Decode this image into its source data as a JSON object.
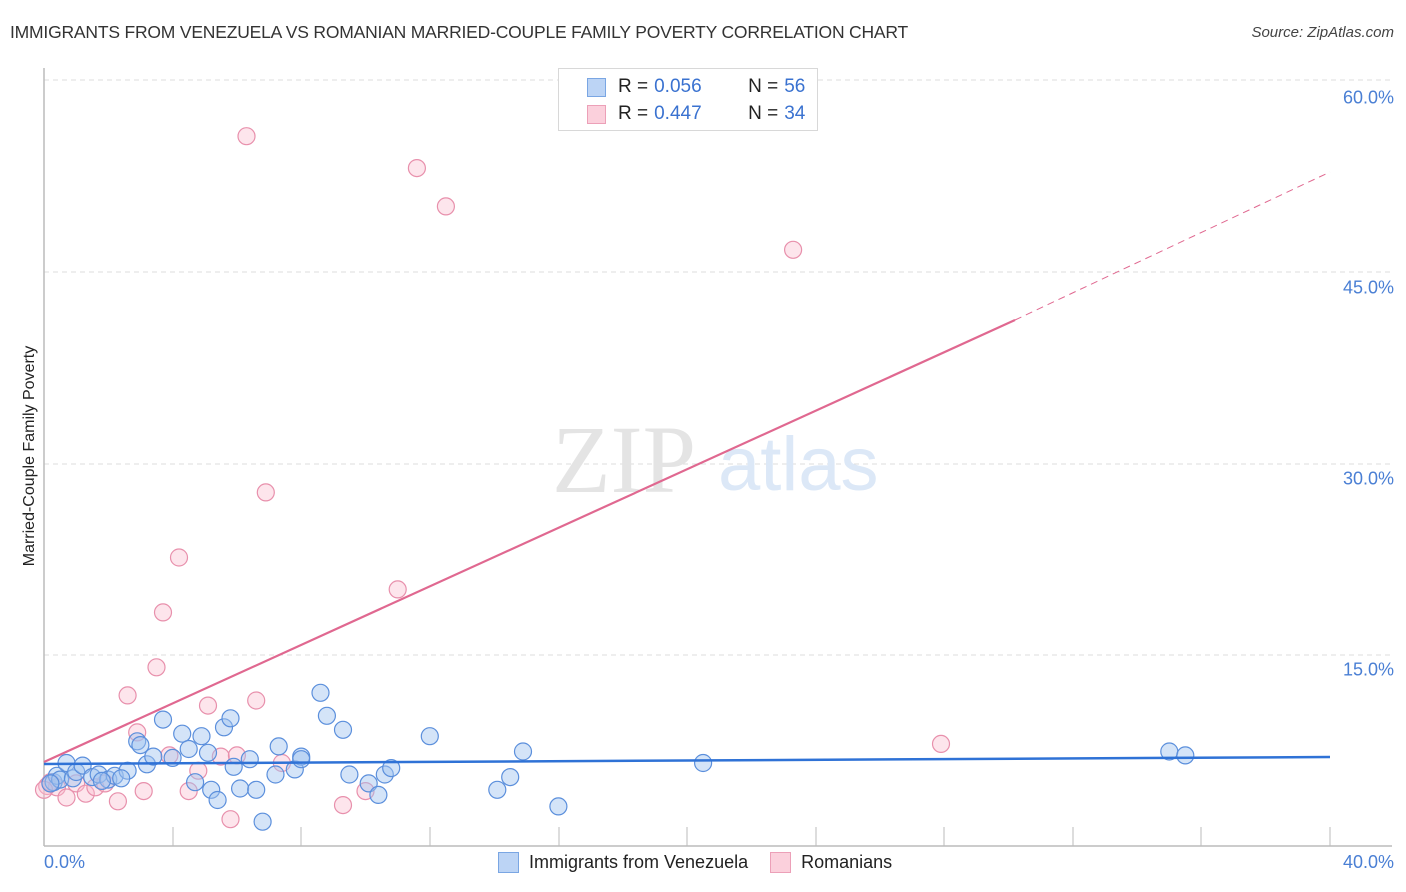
{
  "header": {
    "title": "IMMIGRANTS FROM VENEZUELA VS ROMANIAN MARRIED-COUPLE FAMILY POVERTY CORRELATION CHART",
    "source": "Source: ZipAtlas.com"
  },
  "legend_box": {
    "rows": [
      {
        "r_label": "R = ",
        "r_value": "0.056",
        "n_label": "N = ",
        "n_value": "56",
        "color": "#a9c8f0",
        "border": "#6c9ee0"
      },
      {
        "r_label": "R = ",
        "r_value": "0.447",
        "n_label": "N = ",
        "n_value": "34",
        "color": "#f9c5d3",
        "border": "#ec97b0"
      }
    ]
  },
  "bottom_legend": {
    "items": [
      {
        "label": "Immigrants from Venezuela",
        "color": "#bcd4f5",
        "border": "#7aa6e3"
      },
      {
        "label": "Romanians",
        "color": "#fbd0dc",
        "border": "#eca0b8"
      }
    ]
  },
  "axes": {
    "y_label": "Married-Couple Family Poverty",
    "y_ticks": [
      "60.0%",
      "45.0%",
      "30.0%",
      "15.0%"
    ],
    "x_ticks": [
      "0.0%",
      "40.0%"
    ]
  },
  "watermark": {
    "zip": "ZIP",
    "atlas": "atlas"
  },
  "colors": {
    "blue_series": "#2f72d6",
    "pink_series": "#e06890",
    "tick_text": "#4a7fd4"
  },
  "chart_data": {
    "type": "scatter",
    "title": "IMMIGRANTS FROM VENEZUELA VS ROMANIAN MARRIED-COUPLE FAMILY POVERTY CORRELATION CHART",
    "xlabel": "Immigrants from Venezuela",
    "ylabel": "Married-Couple Family Poverty",
    "xlim": [
      0,
      40
    ],
    "ylim": [
      0,
      60
    ],
    "x_ticks": [
      "0.0%",
      "40.0%"
    ],
    "y_ticks": [
      "15.0%",
      "30.0%",
      "45.0%",
      "60.0%"
    ],
    "grid": "horizontal dashed",
    "legend_position": "top-center and bottom",
    "series": [
      {
        "name": "Immigrants from Venezuela",
        "R": 0.056,
        "N": 56,
        "trend": {
          "x": [
            0,
            40
          ],
          "y": [
            6.4,
            6.9
          ]
        },
        "points": [
          [
            0.3,
            5.0
          ],
          [
            0.4,
            5.5
          ],
          [
            0.5,
            5.2
          ],
          [
            0.7,
            6.5
          ],
          [
            0.9,
            5.3
          ],
          [
            1.0,
            5.8
          ],
          [
            1.2,
            6.3
          ],
          [
            1.5,
            5.4
          ],
          [
            1.7,
            5.6
          ],
          [
            2.0,
            5.2
          ],
          [
            2.2,
            5.5
          ],
          [
            2.6,
            5.9
          ],
          [
            2.9,
            8.2
          ],
          [
            3.0,
            7.9
          ],
          [
            3.2,
            6.4
          ],
          [
            3.4,
            7.0
          ],
          [
            3.7,
            9.9
          ],
          [
            4.0,
            6.9
          ],
          [
            4.3,
            8.8
          ],
          [
            4.5,
            7.6
          ],
          [
            4.7,
            5.0
          ],
          [
            4.9,
            8.6
          ],
          [
            5.1,
            7.3
          ],
          [
            5.2,
            4.4
          ],
          [
            5.4,
            3.6
          ],
          [
            5.6,
            9.3
          ],
          [
            5.8,
            10.0
          ],
          [
            5.9,
            6.2
          ],
          [
            6.1,
            4.5
          ],
          [
            6.4,
            6.8
          ],
          [
            6.6,
            4.4
          ],
          [
            6.8,
            1.9
          ],
          [
            7.2,
            5.6
          ],
          [
            7.3,
            7.8
          ],
          [
            7.8,
            6.0
          ],
          [
            8.0,
            7.0
          ],
          [
            8.0,
            6.8
          ],
          [
            8.6,
            12.0
          ],
          [
            8.8,
            10.2
          ],
          [
            9.3,
            9.1
          ],
          [
            9.5,
            5.6
          ],
          [
            10.1,
            4.9
          ],
          [
            10.4,
            4.0
          ],
          [
            10.6,
            5.6
          ],
          [
            10.8,
            6.1
          ],
          [
            12.0,
            8.6
          ],
          [
            14.1,
            4.4
          ],
          [
            14.5,
            5.4
          ],
          [
            14.9,
            7.4
          ],
          [
            16.0,
            3.1
          ],
          [
            20.5,
            6.5
          ],
          [
            35.0,
            7.4
          ],
          [
            35.5,
            7.1
          ],
          [
            0.2,
            4.9
          ],
          [
            1.8,
            5.1
          ],
          [
            2.4,
            5.3
          ]
        ]
      },
      {
        "name": "Romanians",
        "R": 0.447,
        "N": 34,
        "trend": {
          "x": [
            0,
            30.2,
            40
          ],
          "y": [
            6.5,
            41.1,
            52.8
          ],
          "dashed_from_x": 30.2
        },
        "points": [
          [
            0.1,
            4.7
          ],
          [
            0.2,
            5.0
          ],
          [
            0.4,
            4.6
          ],
          [
            0.7,
            3.8
          ],
          [
            1.0,
            4.9
          ],
          [
            1.3,
            4.1
          ],
          [
            1.6,
            4.6
          ],
          [
            1.9,
            4.9
          ],
          [
            2.3,
            3.5
          ],
          [
            2.6,
            11.8
          ],
          [
            2.9,
            8.9
          ],
          [
            3.1,
            4.3
          ],
          [
            3.5,
            14.0
          ],
          [
            3.7,
            18.3
          ],
          [
            3.9,
            7.1
          ],
          [
            4.2,
            22.6
          ],
          [
            4.5,
            4.3
          ],
          [
            4.8,
            5.9
          ],
          [
            5.1,
            11.0
          ],
          [
            5.5,
            7.0
          ],
          [
            5.8,
            2.1
          ],
          [
            6.0,
            7.1
          ],
          [
            6.3,
            55.6
          ],
          [
            6.6,
            11.4
          ],
          [
            6.9,
            27.7
          ],
          [
            7.4,
            6.5
          ],
          [
            9.3,
            3.2
          ],
          [
            10.0,
            4.3
          ],
          [
            11.0,
            20.1
          ],
          [
            11.6,
            53.1
          ],
          [
            12.5,
            50.1
          ],
          [
            23.3,
            46.7
          ],
          [
            27.9,
            8.0
          ],
          [
            0.0,
            4.4
          ]
        ]
      }
    ]
  }
}
